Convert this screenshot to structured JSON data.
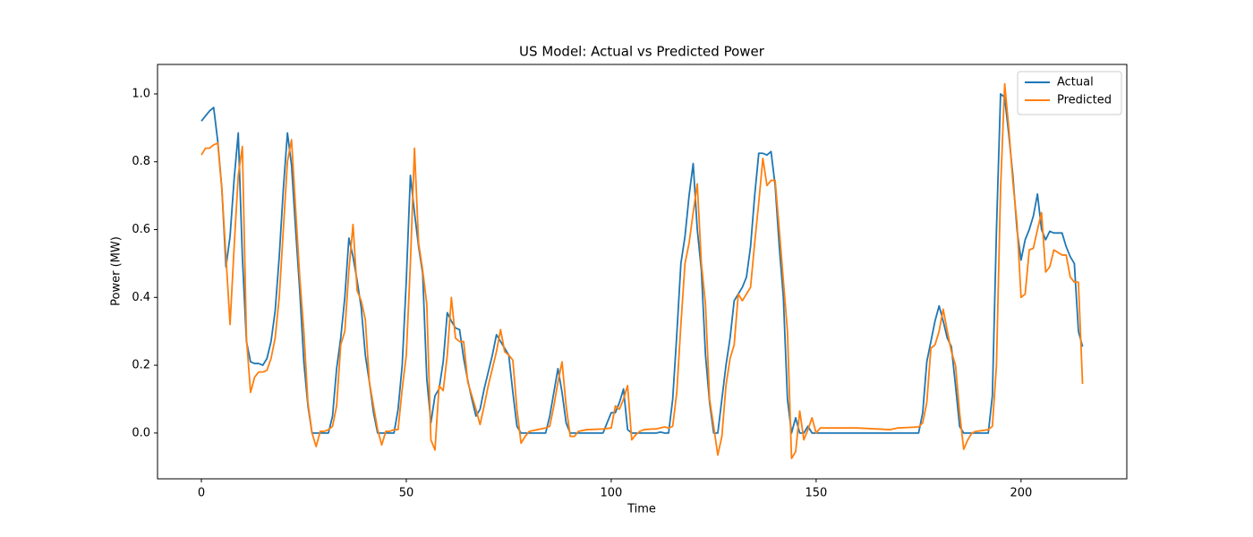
{
  "chart_data": {
    "type": "line",
    "title": "US Model: Actual vs Predicted Power",
    "x_label": "Time",
    "y_label": "Power (MW)",
    "x": [
      0,
      1,
      2,
      3,
      4,
      5,
      6,
      7,
      8,
      9,
      10,
      11,
      12,
      13,
      14,
      15,
      16,
      17,
      18,
      19,
      20,
      21,
      22,
      23,
      24,
      25,
      26,
      27,
      28,
      29,
      30,
      31,
      32,
      33,
      34,
      35,
      36,
      37,
      38,
      39,
      40,
      41,
      42,
      43,
      44,
      45,
      46,
      47,
      48,
      49,
      50,
      51,
      52,
      53,
      54,
      55,
      56,
      57,
      58,
      59,
      60,
      61,
      62,
      63,
      64,
      65,
      66,
      67,
      68,
      69,
      70,
      71,
      72,
      73,
      74,
      75,
      76,
      77,
      78,
      79,
      80,
      82,
      84,
      85,
      86,
      87,
      88,
      89,
      90,
      91,
      92,
      94,
      98,
      100,
      101,
      102,
      103,
      104,
      105,
      106,
      107,
      108,
      110,
      111,
      112,
      113,
      114,
      115,
      116,
      117,
      118,
      119,
      120,
      121,
      122,
      123,
      124,
      125,
      126,
      127,
      128,
      129,
      130,
      131,
      132,
      133,
      134,
      135,
      136,
      137,
      138,
      139,
      140,
      141,
      142,
      143,
      144,
      145,
      146,
      147,
      148,
      149,
      150,
      151,
      155,
      160,
      165,
      168,
      170,
      175,
      176,
      177,
      178,
      179,
      180,
      181,
      182,
      183,
      184,
      185,
      186,
      187,
      188,
      189,
      191,
      192,
      193,
      194,
      195,
      196,
      197,
      198,
      199,
      200,
      201,
      202,
      203,
      204,
      205,
      206,
      207,
      208,
      210,
      211,
      212,
      213,
      214,
      215
    ],
    "series": [
      {
        "name": "Actual",
        "color": "#1f77b4",
        "values": [
          0.92,
          0.935,
          0.95,
          0.96,
          0.86,
          0.72,
          0.49,
          0.58,
          0.75,
          0.885,
          0.52,
          0.27,
          0.21,
          0.205,
          0.205,
          0.2,
          0.22,
          0.27,
          0.36,
          0.52,
          0.72,
          0.885,
          0.79,
          0.6,
          0.42,
          0.21,
          0.08,
          0,
          0,
          0,
          0,
          0,
          0.05,
          0.19,
          0.28,
          0.4,
          0.575,
          0.52,
          0.45,
          0.37,
          0.23,
          0.15,
          0.06,
          0,
          0,
          0,
          0,
          0,
          0.07,
          0.2,
          0.45,
          0.76,
          0.65,
          0.55,
          0.47,
          0.16,
          0.03,
          0.11,
          0.13,
          0.21,
          0.355,
          0.33,
          0.31,
          0.305,
          0.22,
          0.155,
          0.1,
          0.05,
          0.07,
          0.13,
          0.18,
          0.23,
          0.29,
          0.27,
          0.25,
          0.23,
          0.12,
          0.02,
          0,
          0,
          0,
          0,
          0,
          0.05,
          0.12,
          0.19,
          0.12,
          0.03,
          0,
          0,
          0,
          0,
          0,
          0.06,
          0.06,
          0.09,
          0.13,
          0.01,
          0,
          0,
          0,
          0,
          0,
          0,
          0.003,
          0,
          0,
          0.1,
          0.29,
          0.5,
          0.58,
          0.7,
          0.795,
          0.6,
          0.48,
          0.23,
          0.09,
          0,
          0,
          0.1,
          0.2,
          0.28,
          0.39,
          0.41,
          0.43,
          0.46,
          0.55,
          0.7,
          0.825,
          0.825,
          0.82,
          0.83,
          0.73,
          0.55,
          0.4,
          0.1,
          0,
          0.045,
          0,
          0,
          0.02,
          0,
          0,
          0,
          0,
          0,
          0,
          0,
          0,
          0,
          0.06,
          0.21,
          0.27,
          0.33,
          0.375,
          0.33,
          0.28,
          0.255,
          0.14,
          0.02,
          0,
          0,
          0,
          0,
          0,
          0,
          0.11,
          0.6,
          1.0,
          0.99,
          0.88,
          0.76,
          0.6,
          0.51,
          0.57,
          0.6,
          0.64,
          0.705,
          0.6,
          0.57,
          0.595,
          0.59,
          0.59,
          0.55,
          0.52,
          0.5,
          0.3,
          0.255
        ]
      },
      {
        "name": "Predicted",
        "color": "#ff7f0e",
        "values": [
          0.82,
          0.84,
          0.84,
          0.85,
          0.855,
          0.72,
          0.52,
          0.32,
          0.55,
          0.76,
          0.845,
          0.28,
          0.12,
          0.165,
          0.18,
          0.18,
          0.185,
          0.22,
          0.28,
          0.4,
          0.6,
          0.8,
          0.865,
          0.66,
          0.46,
          0.3,
          0.09,
          0,
          -0.04,
          0.005,
          0.005,
          0.01,
          0.02,
          0.08,
          0.26,
          0.3,
          0.48,
          0.615,
          0.42,
          0.39,
          0.335,
          0.15,
          0.08,
          0.01,
          -0.035,
          0.005,
          0.005,
          0.01,
          0.01,
          0.13,
          0.23,
          0.5,
          0.84,
          0.56,
          0.48,
          0.38,
          -0.02,
          -0.05,
          0.14,
          0.125,
          0.23,
          0.4,
          0.28,
          0.27,
          0.27,
          0.15,
          0.11,
          0.07,
          0.025,
          0.08,
          0.14,
          0.19,
          0.24,
          0.305,
          0.24,
          0.23,
          0.215,
          0.07,
          -0.03,
          -0.01,
          0.005,
          0.01,
          0.015,
          0.02,
          0.08,
          0.15,
          0.21,
          0.08,
          -0.01,
          -0.01,
          0.005,
          0.01,
          0.012,
          0.015,
          0.08,
          0.07,
          0.1,
          0.14,
          -0.02,
          -0.005,
          0.005,
          0.01,
          0.012,
          0.012,
          0.015,
          0.018,
          0.015,
          0.02,
          0.12,
          0.32,
          0.5,
          0.56,
          0.65,
          0.735,
          0.5,
          0.38,
          0.1,
          0.02,
          -0.065,
          -0.01,
          0.14,
          0.22,
          0.26,
          0.41,
          0.39,
          0.41,
          0.43,
          0.56,
          0.68,
          0.81,
          0.73,
          0.745,
          0.745,
          0.6,
          0.45,
          0.3,
          -0.075,
          -0.055,
          0.065,
          -0.02,
          0.01,
          0.045,
          0,
          0.015,
          0.015,
          0.015,
          0.012,
          0.01,
          0.015,
          0.018,
          0.03,
          0.09,
          0.25,
          0.26,
          0.3,
          0.365,
          0.3,
          0.24,
          0.2,
          0.06,
          -0.048,
          -0.02,
          0,
          0.005,
          0.008,
          0.01,
          0.02,
          0.2,
          0.72,
          1.03,
          0.9,
          0.74,
          0.62,
          0.4,
          0.41,
          0.54,
          0.545,
          0.6,
          0.65,
          0.475,
          0.49,
          0.54,
          0.525,
          0.525,
          0.46,
          0.445,
          0.445,
          0.145
        ]
      }
    ],
    "xlim": [
      -10.7,
      225.8
    ],
    "ylim": [
      -0.135,
      1.087
    ],
    "xticks": [
      0,
      50,
      100,
      150,
      200
    ],
    "yticks": [
      {
        "value": 0,
        "label": "0.0"
      },
      0.2,
      0.4,
      0.6,
      0.8,
      {
        "value": 1,
        "label": "1.0"
      }
    ],
    "legend": "upper right"
  }
}
